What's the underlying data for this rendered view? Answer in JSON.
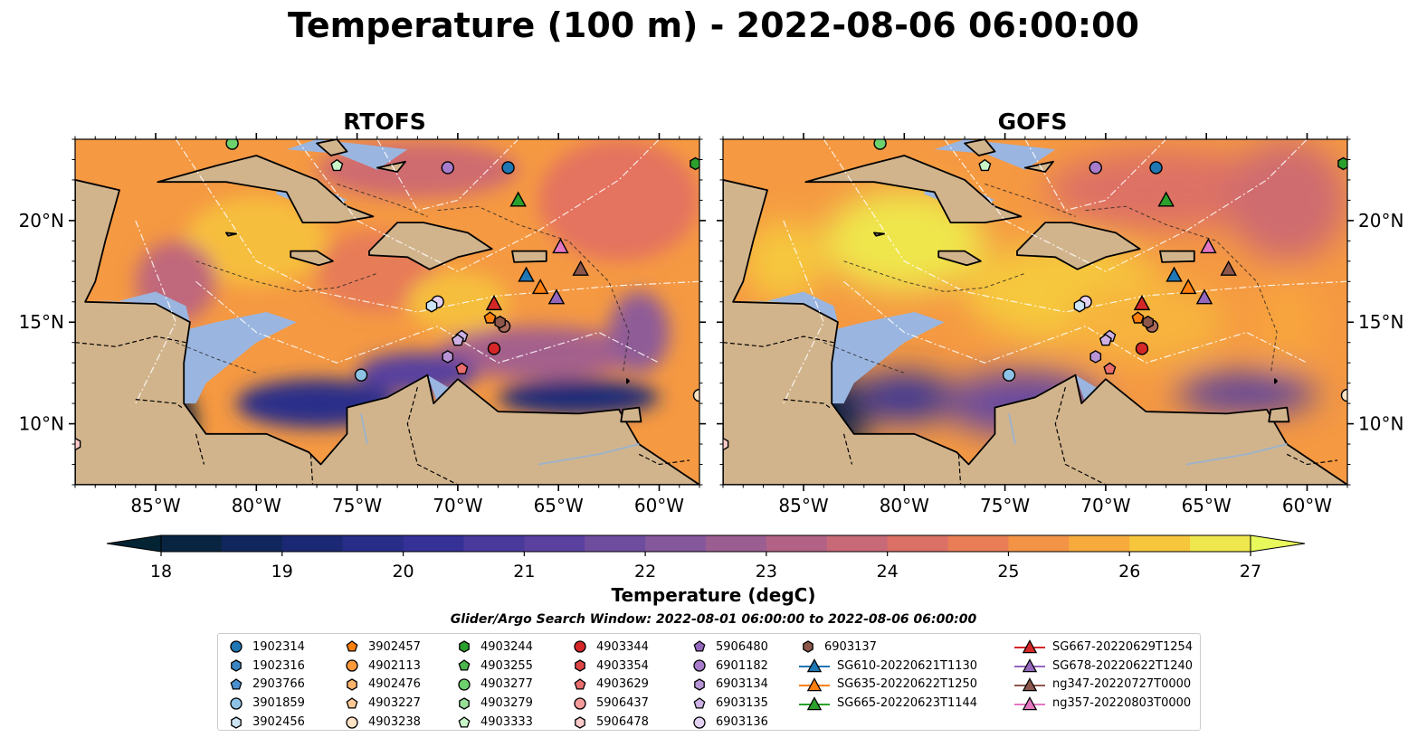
{
  "title": "Temperature (100 m) - 2022-08-06 06:00:00",
  "panels": [
    {
      "title": "RTOFS",
      "model": "rtofs"
    },
    {
      "title": "GOFS",
      "model": "gofs"
    }
  ],
  "map": {
    "lon_range": [
      -89,
      -58
    ],
    "lat_range": [
      7,
      24
    ],
    "lon_ticks": [
      {
        "value": -85,
        "label": "85°W"
      },
      {
        "value": -80,
        "label": "80°W"
      },
      {
        "value": -75,
        "label": "75°W"
      },
      {
        "value": -70,
        "label": "70°W"
      },
      {
        "value": -65,
        "label": "65°W"
      },
      {
        "value": -60,
        "label": "60°W"
      }
    ],
    "lat_ticks": [
      {
        "value": 20,
        "label": "20°N"
      },
      {
        "value": 15,
        "label": "15°N"
      },
      {
        "value": 10,
        "label": "10°N"
      }
    ],
    "land_color": "#d2b48c",
    "shelf_color": "#9ab6e0"
  },
  "colorbar": {
    "label": "Temperature (degC)",
    "min": 18,
    "max": 27,
    "step": 0.5,
    "ticks": [
      "18",
      "19",
      "20",
      "21",
      "22",
      "23",
      "24",
      "25",
      "26",
      "27"
    ],
    "extend": "both",
    "colormap": "thermal"
  },
  "search_window": "Glider/Argo Search Window: 2022-08-01 06:00:00 to 2022-08-06 06:00:00",
  "legend": {
    "columns": [
      [
        {
          "label": "1902314",
          "marker": "circle",
          "color": "#1f77b4"
        },
        {
          "label": "1902316",
          "marker": "hexagon",
          "color": "#3a86c4"
        },
        {
          "label": "2903766",
          "marker": "pentagon",
          "color": "#4a90d0"
        },
        {
          "label": "3901859",
          "marker": "circle",
          "color": "#8ec3e6"
        },
        {
          "label": "3902456",
          "marker": "hexagon",
          "color": "#cde4f5"
        }
      ],
      [
        {
          "label": "3902457",
          "marker": "pentagon",
          "color": "#ff7f0e"
        },
        {
          "label": "4902113",
          "marker": "circle",
          "color": "#ff9a3c"
        },
        {
          "label": "4902476",
          "marker": "hexagon",
          "color": "#ffb36b"
        },
        {
          "label": "4903227",
          "marker": "pentagon",
          "color": "#ffc994"
        },
        {
          "label": "4903238",
          "marker": "circle",
          "color": "#ffe3c4"
        }
      ],
      [
        {
          "label": "4903244",
          "marker": "hexagon",
          "color": "#2ca02c"
        },
        {
          "label": "4903255",
          "marker": "pentagon",
          "color": "#4cb54c"
        },
        {
          "label": "4903277",
          "marker": "circle",
          "color": "#6dd16d"
        },
        {
          "label": "4903279",
          "marker": "hexagon",
          "color": "#98e098"
        },
        {
          "label": "4903333",
          "marker": "pentagon",
          "color": "#c8f5c8"
        }
      ],
      [
        {
          "label": "4903344",
          "marker": "circle",
          "color": "#d62728"
        },
        {
          "label": "4903354",
          "marker": "hexagon",
          "color": "#e04546"
        },
        {
          "label": "4903629",
          "marker": "pentagon",
          "color": "#ea6d6e"
        },
        {
          "label": "5906437",
          "marker": "circle",
          "color": "#f49c9c"
        },
        {
          "label": "5906478",
          "marker": "hexagon",
          "color": "#fbcaca"
        }
      ],
      [
        {
          "label": "5906480",
          "marker": "pentagon",
          "color": "#9467bd"
        },
        {
          "label": "6901182",
          "marker": "circle",
          "color": "#a67ccb"
        },
        {
          "label": "6903134",
          "marker": "hexagon",
          "color": "#b894d6"
        },
        {
          "label": "6903135",
          "marker": "pentagon",
          "color": "#cdb1e4"
        },
        {
          "label": "6903136",
          "marker": "circle",
          "color": "#e3d1f2"
        }
      ],
      [
        {
          "label": "6903137",
          "marker": "hexagon",
          "color": "#8c564b"
        },
        {
          "label": "SG610-20220621T1130",
          "marker": "triangle-line",
          "color": "#1f77b4"
        },
        {
          "label": "SG635-20220622T1250",
          "marker": "triangle-line",
          "color": "#ff7f0e"
        },
        {
          "label": "SG665-20220623T1144",
          "marker": "triangle-line",
          "color": "#2ca02c"
        }
      ],
      [
        {
          "label": "SG667-20220629T1254",
          "marker": "triangle-line",
          "color": "#d62728"
        },
        {
          "label": "SG678-20220622T1240",
          "marker": "triangle-line",
          "color": "#9467bd"
        },
        {
          "label": "ng347-20220727T0000",
          "marker": "triangle-line",
          "color": "#8c564b"
        },
        {
          "label": "ng357-20220803T0000",
          "marker": "triangle-line",
          "color": "#e377c2"
        }
      ]
    ]
  },
  "stations": [
    {
      "lon": -67.5,
      "lat": 22.6,
      "marker": "circle",
      "color": "#1f77b4"
    },
    {
      "lon": -70.5,
      "lat": 22.6,
      "marker": "circle",
      "color": "#a67ccb"
    },
    {
      "lon": -81.2,
      "lat": 23.8,
      "marker": "circle",
      "color": "#6dd16d"
    },
    {
      "lon": -76.0,
      "lat": 22.7,
      "marker": "pentagon",
      "color": "#c8f5c8"
    },
    {
      "lon": -58.2,
      "lat": 22.8,
      "marker": "hexagon",
      "color": "#2ca02c"
    },
    {
      "lon": -71.0,
      "lat": 16.0,
      "marker": "circle",
      "color": "#e3d1f2"
    },
    {
      "lon": -71.3,
      "lat": 15.8,
      "marker": "hexagon",
      "color": "#cde4f5"
    },
    {
      "lon": -67.7,
      "lat": 14.8,
      "marker": "circle",
      "color": "#a9695a"
    },
    {
      "lon": -67.9,
      "lat": 15.0,
      "marker": "hexagon",
      "color": "#8c564b"
    },
    {
      "lon": -68.4,
      "lat": 15.2,
      "marker": "pentagon",
      "color": "#ff7f0e"
    },
    {
      "lon": -69.8,
      "lat": 14.3,
      "marker": "pentagon",
      "color": "#cdb1e4"
    },
    {
      "lon": -70.0,
      "lat": 14.1,
      "marker": "pentagon",
      "color": "#cdb1e4"
    },
    {
      "lon": -68.2,
      "lat": 13.7,
      "marker": "circle",
      "color": "#d62728"
    },
    {
      "lon": -70.5,
      "lat": 13.3,
      "marker": "hexagon",
      "color": "#b894d6"
    },
    {
      "lon": -69.8,
      "lat": 12.7,
      "marker": "pentagon",
      "color": "#ea6d6e"
    },
    {
      "lon": -74.8,
      "lat": 12.4,
      "marker": "circle",
      "color": "#8ec3e6"
    },
    {
      "lon": -89.0,
      "lat": 9.0,
      "marker": "hexagon",
      "color": "#fbcaca"
    },
    {
      "lon": -58.0,
      "lat": 11.4,
      "marker": "circle",
      "color": "#ffe3c4"
    },
    {
      "lon": -67.0,
      "lat": 21.0,
      "marker": "triangle",
      "color": "#2ca02c"
    },
    {
      "lon": -66.6,
      "lat": 17.3,
      "marker": "triangle",
      "color": "#1f77b4"
    },
    {
      "lon": -65.9,
      "lat": 16.7,
      "marker": "triangle",
      "color": "#ff7f0e"
    },
    {
      "lon": -65.1,
      "lat": 16.2,
      "marker": "triangle",
      "color": "#9467bd"
    },
    {
      "lon": -68.2,
      "lat": 15.9,
      "marker": "triangle",
      "color": "#d62728"
    },
    {
      "lon": -64.9,
      "lat": 18.7,
      "marker": "triangle",
      "color": "#e377c2"
    },
    {
      "lon": -63.9,
      "lat": 17.6,
      "marker": "triangle",
      "color": "#8c564b"
    }
  ]
}
